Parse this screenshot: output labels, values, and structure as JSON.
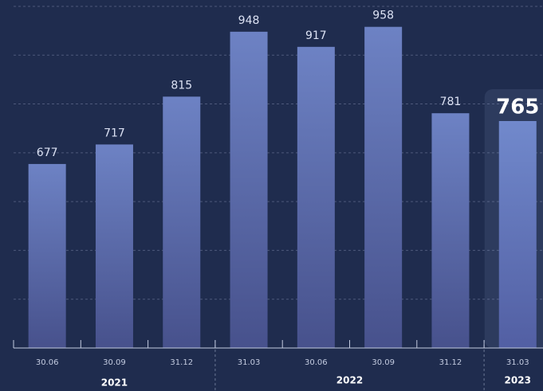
{
  "chart_data": {
    "type": "bar",
    "groups": [
      {
        "label": "2021",
        "categories": [
          "30.06",
          "30.09",
          "31.12"
        ],
        "values": [
          677,
          717,
          815
        ]
      },
      {
        "label": "2022",
        "categories": [
          "31.03",
          "30.06",
          "30.09",
          "31.12"
        ],
        "values": [
          948,
          917,
          958,
          781
        ]
      },
      {
        "label": "2023",
        "categories": [
          "31.03"
        ],
        "values": [
          765
        ]
      }
    ],
    "color": "#6b80c2",
    "ylim": [
      300,
      1013
    ],
    "yticks": [
      400,
      500,
      600,
      700,
      800,
      900,
      1000
    ],
    "grid": true
  }
}
